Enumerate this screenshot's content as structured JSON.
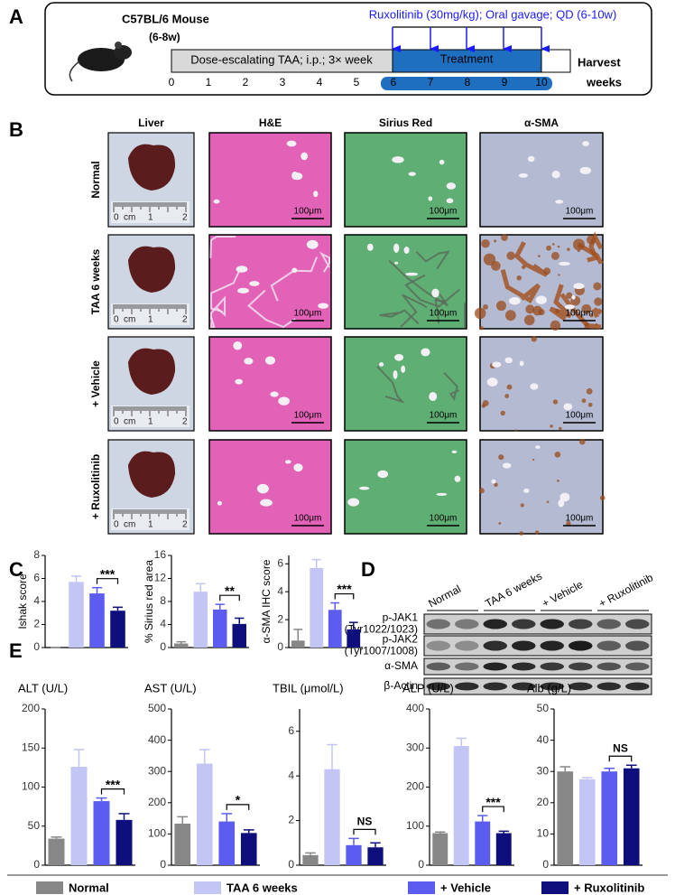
{
  "panel_labels": [
    "A",
    "B",
    "C",
    "D",
    "E"
  ],
  "panel_a": {
    "mouse_title": "C57BL/6 Mouse",
    "mouse_age": "(6-8w)",
    "treatment_note": "Ruxolitinib (30mg/kg); Oral gavage; QD (6-10w)",
    "phase_1": "Dose-escalating TAA; i.p.; 3× week",
    "phase_2": "Treatment",
    "end": "Harvest",
    "timeline": [
      0,
      1,
      2,
      3,
      4,
      5,
      6,
      7,
      8,
      9,
      10
    ],
    "unit": "weeks"
  },
  "panel_b": {
    "columns": [
      "Liver",
      "H&E",
      "Sirius Red",
      "α-SMA"
    ],
    "rows": [
      "Normal",
      "TAA  6 weeks",
      "+ Vehicle",
      "+ Ruxolitinib"
    ],
    "scale_bar": "100μm",
    "ruler": [
      "0",
      "cm",
      "1",
      "2"
    ]
  },
  "panel_d": {
    "lanes": [
      "Normal",
      "TAA  6 weeks",
      "+ Vehicle",
      "+ Ruxolitinib"
    ],
    "blots": [
      [
        "p-JAK1",
        "(Tyr1022/1023)"
      ],
      [
        "p-JAK2",
        "(Tyr1007/1008)"
      ],
      [
        "α-SMA"
      ],
      [
        "β-Actin"
      ]
    ]
  },
  "groups": [
    {
      "name": "Normal",
      "color": "#878787"
    },
    {
      "name": "TAA  6 weeks",
      "color": "#c3c5f4"
    },
    {
      "name": "+ Vehicle",
      "color": "#5c5df0"
    },
    {
      "name": "+ Ruxolitinib",
      "color": "#0e0e7c"
    }
  ],
  "chart_data": [
    {
      "type": "bar",
      "ylabel": "Ishak score",
      "ylim": [
        0,
        8
      ],
      "yticks": [
        0,
        2,
        4,
        6,
        8
      ],
      "values": [
        0,
        5.7,
        4.7,
        3.2
      ],
      "errors": [
        0,
        0.5,
        0.5,
        0.3
      ],
      "annotation": "***"
    },
    {
      "type": "bar",
      "ylabel": "% Sirius red area",
      "ylim": [
        0,
        16
      ],
      "yticks": [
        0,
        4,
        8,
        12,
        16
      ],
      "values": [
        0.7,
        9.7,
        6.6,
        4.1
      ],
      "errors": [
        0.3,
        1.4,
        0.9,
        1.0
      ],
      "annotation": "**"
    },
    {
      "type": "bar",
      "ylabel": "α-SMA IHC score",
      "ylim": [
        0,
        6.6
      ],
      "yticks": [
        0,
        2,
        4,
        6
      ],
      "values": [
        0.5,
        5.7,
        2.7,
        1.3
      ],
      "errors": [
        0.8,
        0.6,
        0.5,
        0.5
      ],
      "annotation": "***"
    },
    {
      "type": "bar",
      "title": "ALT (U/L)",
      "ylim": [
        0,
        200
      ],
      "yticks": [
        0,
        50,
        100,
        150,
        200
      ],
      "values": [
        34,
        126,
        82,
        58
      ],
      "errors": [
        2,
        22,
        4,
        8
      ],
      "annotation": "***"
    },
    {
      "type": "bar",
      "title": "AST (U/L)",
      "ylim": [
        0,
        500
      ],
      "yticks": [
        0,
        100,
        200,
        300,
        400,
        500
      ],
      "values": [
        133,
        325,
        140,
        103
      ],
      "errors": [
        22,
        45,
        25,
        10
      ],
      "annotation": "*"
    },
    {
      "type": "bar",
      "title": "TBIL (μmol/L)",
      "ylim": [
        0,
        7
      ],
      "yticks": [
        0,
        2,
        4,
        6
      ],
      "values": [
        0.45,
        4.3,
        0.9,
        0.8
      ],
      "errors": [
        0.1,
        1.1,
        0.3,
        0.2
      ],
      "annotation": "NS"
    },
    {
      "type": "bar",
      "title": "ALP (U/L)",
      "ylim": [
        0,
        400
      ],
      "yticks": [
        0,
        100,
        200,
        300,
        400
      ],
      "values": [
        82,
        305,
        112,
        82
      ],
      "errors": [
        3,
        20,
        15,
        5
      ],
      "annotation": "***"
    },
    {
      "type": "bar",
      "title": "Alb (g/L)",
      "ylim": [
        0,
        50
      ],
      "yticks": [
        0,
        10,
        20,
        30,
        40,
        50
      ],
      "values": [
        30,
        27.5,
        30,
        31
      ],
      "errors": [
        1.5,
        0.5,
        1,
        1
      ],
      "annotation": "NS"
    }
  ]
}
